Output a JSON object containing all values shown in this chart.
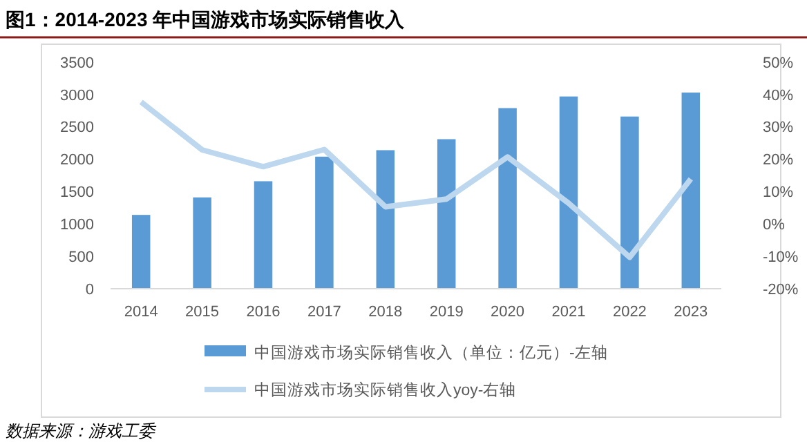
{
  "chart_data": {
    "type": "bar",
    "title": "图1：2014-2023 年中国游戏市场实际销售收入",
    "categories": [
      "2014",
      "2015",
      "2016",
      "2017",
      "2018",
      "2019",
      "2020",
      "2021",
      "2022",
      "2023"
    ],
    "series": [
      {
        "name": "中国游戏市场实际销售收入（单位：亿元）-左轴",
        "color": "#5b9bd5",
        "values": [
          1140,
          1410,
          1660,
          2040,
          2140,
          2310,
          2790,
          2970,
          2660,
          3030
        ]
      },
      {
        "name": "中国游戏市场实际销售收入yoy-右轴",
        "type": "line",
        "axis": "y2",
        "color": "#bdd7ee",
        "values": [
          37.7,
          22.9,
          17.7,
          23.0,
          5.3,
          7.7,
          20.7,
          6.4,
          -10.3,
          13.9
        ]
      }
    ],
    "ylim": [
      0,
      3500
    ],
    "yticks": [
      0,
      500,
      1000,
      1500,
      2000,
      2500,
      3000,
      3500
    ],
    "y2lim": [
      -20,
      50
    ],
    "y2ticks": [
      {
        "value": -20,
        "label": "-20%"
      },
      {
        "value": -10,
        "label": "-10%"
      },
      {
        "value": 0,
        "label": "0%"
      },
      {
        "value": 10,
        "label": "10%"
      },
      {
        "value": 20,
        "label": "20%"
      },
      {
        "value": 30,
        "label": "30%"
      },
      {
        "value": 40,
        "label": "40%"
      },
      {
        "value": 50,
        "label": "50%"
      }
    ],
    "legend": "bottom",
    "grid": false,
    "marker": "none",
    "line_style": "solid",
    "annotations": [
      "数据来源：游戏工委"
    ]
  }
}
